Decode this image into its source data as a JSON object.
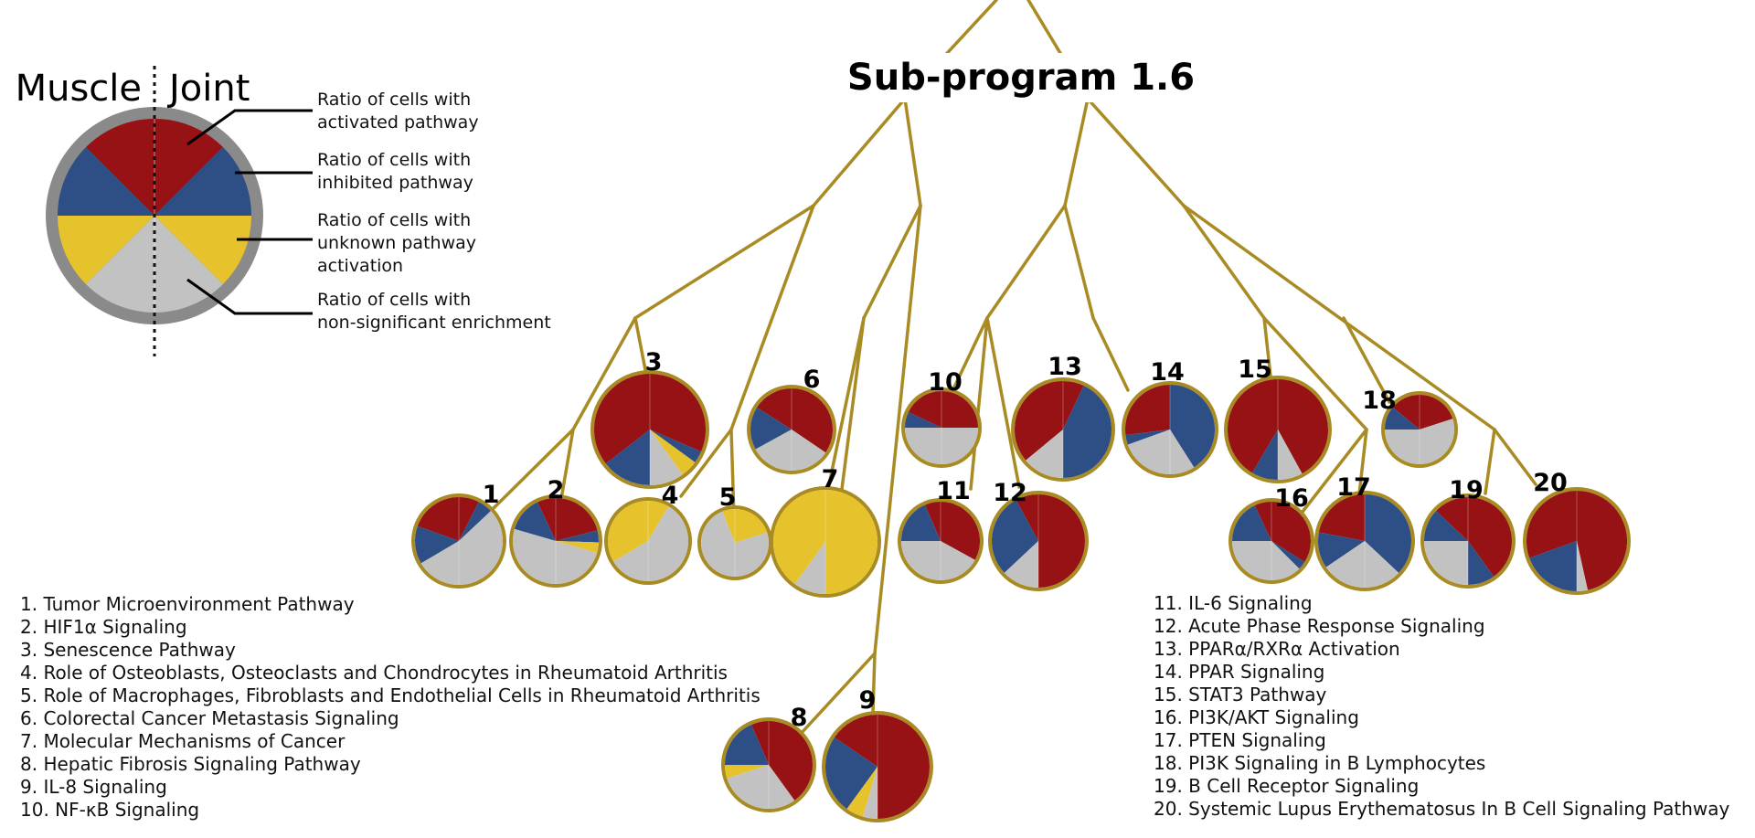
{
  "title": "Sub-program 1.6",
  "legend": {
    "left_side": "Muscle",
    "right_side": "Joint",
    "descriptions": [
      [
        "Ratio of cells with",
        "activated pathway"
      ],
      [
        "Ratio of cells with",
        "inhibited pathway"
      ],
      [
        "Ratio of cells with",
        "unknown pathway",
        "activation"
      ],
      [
        "Ratio of cells with",
        "non-significant enrichment"
      ]
    ]
  },
  "colors": {
    "activated": "#961214",
    "inhibited": "#2e4e86",
    "unknown": "#e6c22c",
    "non_significant": "#c2c2c2",
    "branch": "#a98b24",
    "legend_ring": "#8a8a8a"
  },
  "pathways": [
    "1. Tumor Microenvironment Pathway",
    "2. HIF1α Signaling",
    "3. Senescence Pathway",
    "4. Role of Osteoblasts, Osteoclasts and Chondrocytes in Rheumatoid Arthritis",
    "5. Role of Macrophages, Fibroblasts and Endothelial Cells in Rheumatoid Arthritis",
    "6. Colorectal Cancer Metastasis Signaling",
    "7. Molecular Mechanisms of Cancer",
    "8. Hepatic Fibrosis Signaling Pathway",
    "9. IL-8 Signaling",
    "10. NF-κB Signaling",
    "11. IL-6 Signaling",
    "12. Acute Phase Response Signaling",
    "13. PPARα/RXRα Activation",
    "14. PPAR Signaling",
    "15. STAT3 Pathway",
    "16. PI3K/AKT Signaling",
    "17. PTEN Signaling",
    "18. PI3K Signaling in B Lymphocytes",
    "19. B Cell Receptor Signaling",
    "20. Systemic Lupus Erythematosus In B Cell Signaling Pathway"
  ],
  "nodes": [
    {
      "label": "1",
      "muscle": [
        0.39,
        0.28,
        0,
        0.33
      ],
      "joint": [
        0.15,
        0.11,
        0,
        0.74
      ]
    },
    {
      "label": "2",
      "muscle": [
        0.14,
        0.27,
        0,
        0.59
      ],
      "joint": [
        0.42,
        0.09,
        0.08,
        0.41
      ]
    },
    {
      "label": "3",
      "muscle": [
        0.71,
        0.29,
        0,
        0
      ],
      "joint": [
        0.63,
        0.07,
        0.1,
        0.2
      ]
    },
    {
      "label": "4",
      "muscle": [
        0,
        0,
        0.67,
        0.33
      ],
      "joint": [
        0,
        0,
        0.17,
        0.83
      ]
    },
    {
      "label": "5",
      "muscle": [
        0,
        0,
        0.12,
        0.88
      ],
      "joint": [
        0,
        0,
        0.4,
        0.6
      ]
    },
    {
      "label": "6",
      "muscle": [
        0.32,
        0.34,
        0,
        0.34
      ],
      "joint": [
        0.69,
        0,
        0,
        0.31
      ]
    },
    {
      "label": "7",
      "muscle": [
        0,
        0,
        0.8,
        0.2
      ],
      "joint": [
        0,
        0,
        1.0,
        0
      ]
    },
    {
      "label": "8",
      "muscle": [
        0.13,
        0.37,
        0.1,
        0.4
      ],
      "joint": [
        0.8,
        0,
        0,
        0.2
      ]
    },
    {
      "label": "9",
      "muscle": [
        0.31,
        0.49,
        0.11,
        0.09
      ],
      "joint": [
        1.0,
        0,
        0,
        0
      ]
    },
    {
      "label": "10",
      "muscle": [
        0.36,
        0.14,
        0,
        0.5
      ],
      "joint": [
        0.5,
        0,
        0,
        0.5
      ]
    },
    {
      "label": "11",
      "muscle": [
        0.13,
        0.37,
        0,
        0.5
      ],
      "joint": [
        0.66,
        0,
        0,
        0.34
      ]
    },
    {
      "label": "12",
      "muscle": [
        0.16,
        0.58,
        0,
        0.26
      ],
      "joint": [
        1.0,
        0,
        0,
        0
      ]
    },
    {
      "label": "13",
      "muscle": [
        0.72,
        0,
        0,
        0.28
      ],
      "joint": [
        0.14,
        0.86,
        0,
        0
      ]
    },
    {
      "label": "14",
      "muscle": [
        0.54,
        0.07,
        0,
        0.39
      ],
      "joint": [
        0,
        0.82,
        0,
        0.18
      ]
    },
    {
      "label": "15",
      "muscle": [
        0.83,
        0.17,
        0,
        0
      ],
      "joint": [
        0.84,
        0,
        0,
        0.16
      ]
    },
    {
      "label": "16",
      "muscle": [
        0.14,
        0.36,
        0,
        0.5
      ],
      "joint": [
        0.68,
        0.07,
        0,
        0.25
      ]
    },
    {
      "label": "17",
      "muscle": [
        0.44,
        0.25,
        0,
        0.31
      ],
      "joint": [
        0,
        0.74,
        0,
        0.26
      ]
    },
    {
      "label": "18",
      "muscle": [
        0.28,
        0.22,
        0,
        0.5
      ],
      "joint": [
        0.4,
        0,
        0,
        0.6
      ]
    },
    {
      "label": "19",
      "muscle": [
        0.26,
        0.24,
        0,
        0.5
      ],
      "joint": [
        0.8,
        0.2,
        0,
        0
      ]
    },
    {
      "label": "20",
      "muscle": [
        0.61,
        0.39,
        0,
        0
      ],
      "joint": [
        0.93,
        0,
        0,
        0.07
      ]
    }
  ]
}
